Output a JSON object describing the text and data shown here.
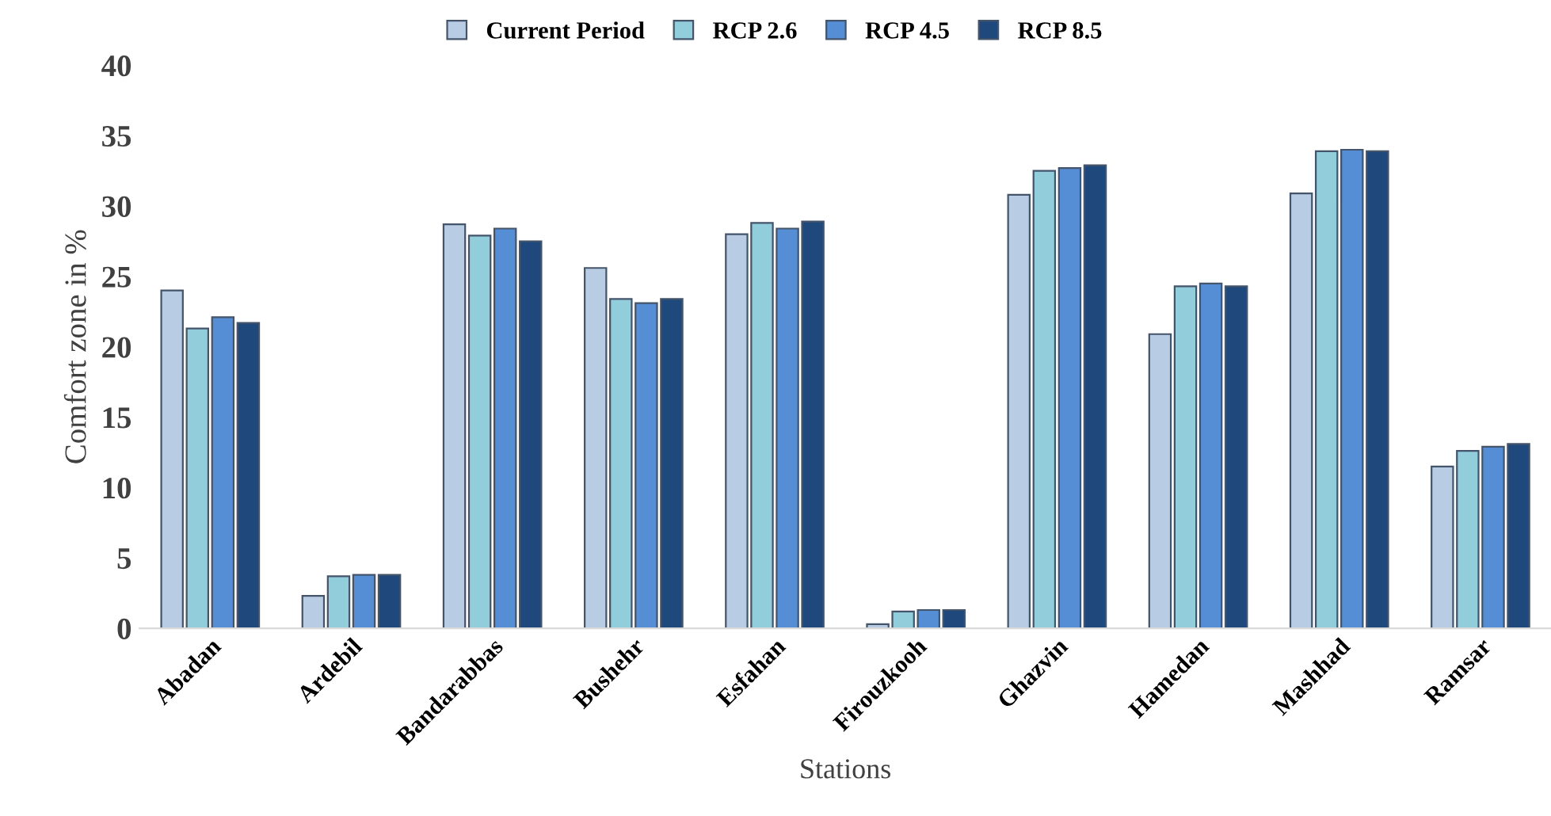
{
  "chart_data": {
    "type": "bar",
    "xlabel": "Stations",
    "ylabel": "Comfort zone in %",
    "categories": [
      "Abadan",
      "Ardebil",
      "Bandarabbas",
      "Bushehr",
      "Esfahan",
      "Firouzkooh",
      "Ghazvin",
      "Hamedan",
      "Mashhad",
      "Ramsar"
    ],
    "series": [
      {
        "name": "Current Period",
        "color": "#b8cce4",
        "values": [
          24.0,
          2.3,
          28.7,
          25.6,
          28.0,
          0.3,
          30.8,
          20.9,
          30.9,
          11.5
        ]
      },
      {
        "name": "RCP 2.6",
        "color": "#92cddc",
        "values": [
          21.3,
          3.7,
          27.9,
          23.4,
          28.8,
          1.2,
          32.5,
          24.3,
          33.9,
          12.6
        ]
      },
      {
        "name": "RCP 4.5",
        "color": "#558ed5",
        "values": [
          22.1,
          3.8,
          28.4,
          23.1,
          28.4,
          1.3,
          32.7,
          24.5,
          34.0,
          12.9
        ]
      },
      {
        "name": "RCP 8.5",
        "color": "#1f497d",
        "values": [
          21.7,
          3.8,
          27.5,
          23.4,
          28.9,
          1.3,
          32.9,
          24.3,
          33.9,
          13.1
        ]
      }
    ],
    "ylim": [
      0,
      40
    ],
    "yticks": [
      0,
      5,
      10,
      15,
      20,
      25,
      30,
      35,
      40
    ],
    "grid": false,
    "legend": "top"
  }
}
